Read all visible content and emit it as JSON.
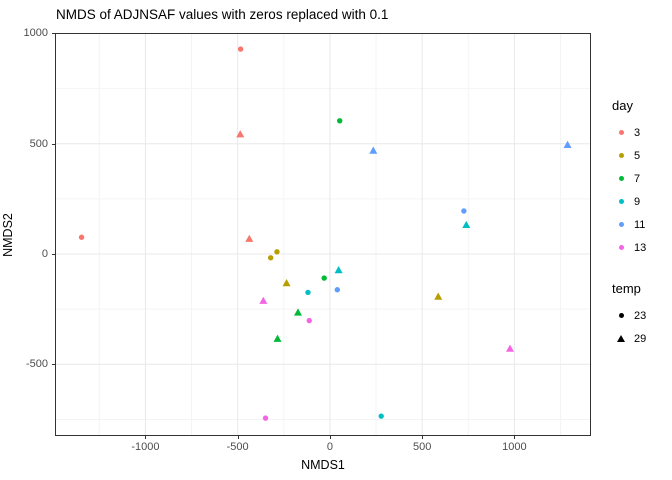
{
  "title": "NMDS of ADJNSAF values with zeros replaced with 0.1",
  "axes": {
    "x_label": "NMDS1",
    "y_label": "NMDS2"
  },
  "legend": {
    "day": {
      "title": "day",
      "items": [
        {
          "label": "3",
          "color": "#F8766D"
        },
        {
          "label": "5",
          "color": "#B79F00"
        },
        {
          "label": "7",
          "color": "#00BA38"
        },
        {
          "label": "9",
          "color": "#00BFC4"
        },
        {
          "label": "11",
          "color": "#619CFF"
        },
        {
          "label": "13",
          "color": "#F564E3"
        }
      ]
    },
    "temp": {
      "title": "temp",
      "items": [
        {
          "label": "23",
          "shape": "circle"
        },
        {
          "label": "29",
          "shape": "triangle"
        }
      ]
    }
  },
  "chart_data": {
    "type": "scatter",
    "title": "NMDS of ADJNSAF values with zeros replaced with 0.1",
    "xlabel": "NMDS1",
    "ylabel": "NMDS2",
    "xlim": [
      -1490,
      1415
    ],
    "ylim": [
      -825,
      1002
    ],
    "x_ticks": [
      -1000,
      -500,
      0,
      500,
      1000
    ],
    "y_ticks": [
      -500,
      0,
      500,
      1000
    ],
    "minor_step": 250,
    "grid": true,
    "legend_position": "right",
    "color_by": "day",
    "shape_by": "temp",
    "day_colors": {
      "3": "#F8766D",
      "5": "#B79F00",
      "7": "#00BA38",
      "9": "#00BFC4",
      "11": "#619CFF",
      "13": "#F564E3"
    },
    "temp_shapes": {
      "23": "circle",
      "29": "triangle"
    },
    "points": [
      {
        "day": 3,
        "temp": 23,
        "x": -1346,
        "y": 76
      },
      {
        "day": 3,
        "temp": 23,
        "x": -484,
        "y": 929
      },
      {
        "day": 3,
        "temp": 29,
        "x": -486,
        "y": 542
      },
      {
        "day": 3,
        "temp": 29,
        "x": -437,
        "y": 68
      },
      {
        "day": 5,
        "temp": 23,
        "x": -287,
        "y": 10
      },
      {
        "day": 5,
        "temp": 23,
        "x": -321,
        "y": -17
      },
      {
        "day": 5,
        "temp": 29,
        "x": -235,
        "y": -133
      },
      {
        "day": 5,
        "temp": 29,
        "x": 587,
        "y": -194
      },
      {
        "day": 7,
        "temp": 23,
        "x": 53,
        "y": 604
      },
      {
        "day": 7,
        "temp": 23,
        "x": -31,
        "y": -109
      },
      {
        "day": 7,
        "temp": 29,
        "x": -173,
        "y": -266
      },
      {
        "day": 7,
        "temp": 29,
        "x": -284,
        "y": -385
      },
      {
        "day": 9,
        "temp": 23,
        "x": -119,
        "y": -174
      },
      {
        "day": 9,
        "temp": 23,
        "x": 278,
        "y": -735
      },
      {
        "day": 9,
        "temp": 29,
        "x": 47,
        "y": -74
      },
      {
        "day": 9,
        "temp": 29,
        "x": 739,
        "y": 131
      },
      {
        "day": 11,
        "temp": 23,
        "x": 40,
        "y": -162
      },
      {
        "day": 11,
        "temp": 23,
        "x": 726,
        "y": 195
      },
      {
        "day": 11,
        "temp": 29,
        "x": 235,
        "y": 468
      },
      {
        "day": 11,
        "temp": 29,
        "x": 1288,
        "y": 494
      },
      {
        "day": 13,
        "temp": 23,
        "x": -112,
        "y": -302
      },
      {
        "day": 13,
        "temp": 23,
        "x": -349,
        "y": -744
      },
      {
        "day": 13,
        "temp": 29,
        "x": -361,
        "y": -213
      },
      {
        "day": 13,
        "temp": 29,
        "x": 976,
        "y": -430
      }
    ],
    "style": {
      "grid_major_color": "#e8e8e8",
      "grid_minor_color": "#f4f4f4",
      "panel_border_color": "#333333",
      "tick_color": "#333333",
      "tick_label_color": "#4d4d4d"
    }
  }
}
